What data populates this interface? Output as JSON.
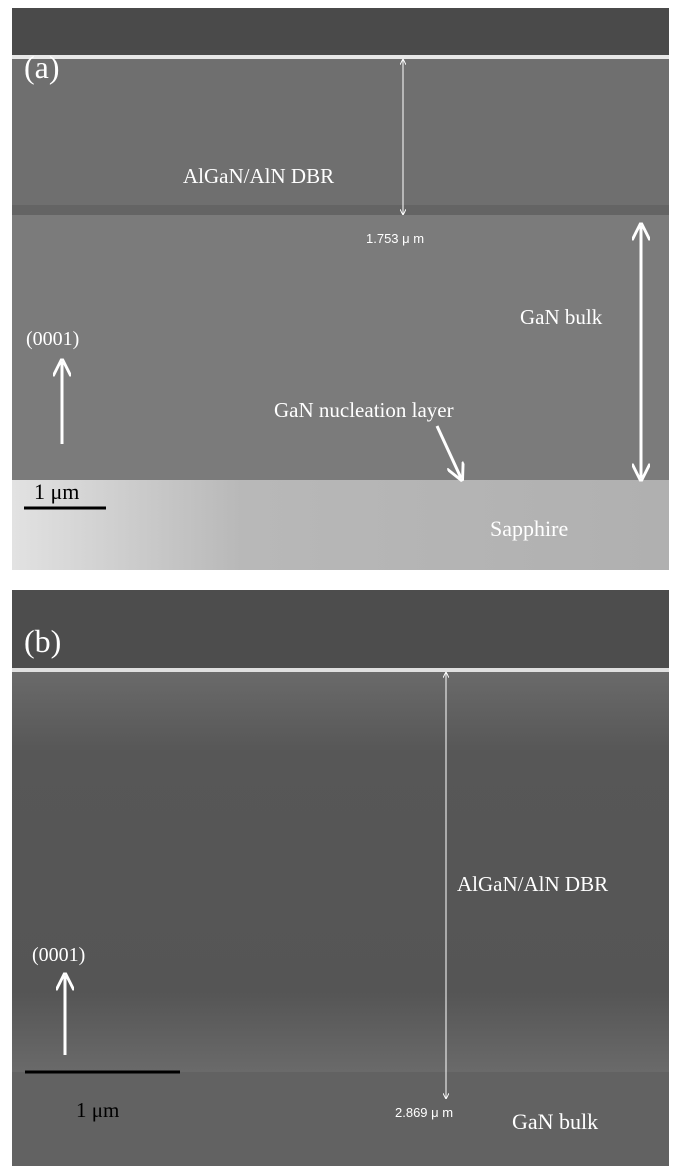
{
  "panels": [
    {
      "label": "(a)",
      "dbr_label": "AlGaN/AlN DBR",
      "thickness": "1.753 μ m",
      "bulk_label": "GaN bulk",
      "direction": "(0001)",
      "nucleation_label": "GaN nucleation layer",
      "scale_bar": "1 μm",
      "substrate_label": "Sapphire"
    },
    {
      "label": "(b)",
      "dbr_label": "AlGaN/AlN DBR",
      "thickness": "2.869 μ m",
      "bulk_label": "GaN bulk",
      "direction": "(0001)",
      "scale_bar": "1 μm"
    }
  ]
}
